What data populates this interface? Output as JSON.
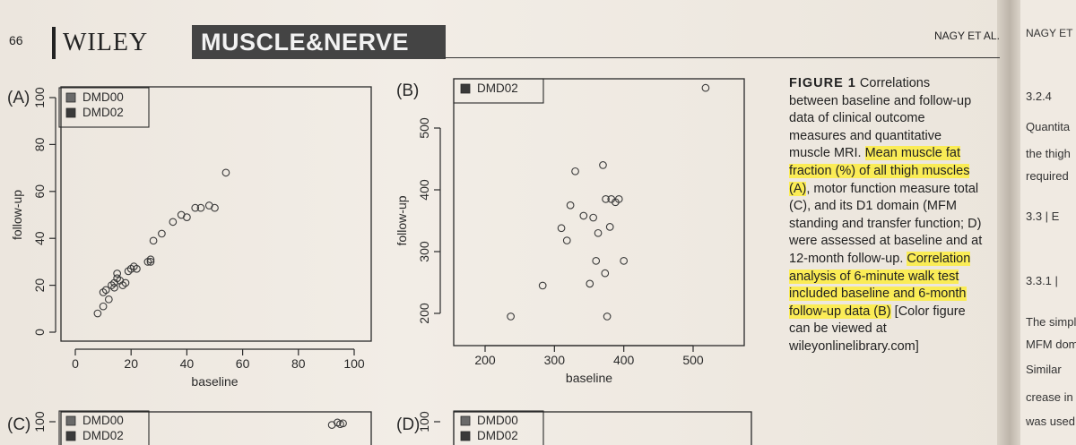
{
  "header": {
    "page_number": "66",
    "publisher": "WILEY",
    "journal": "MUSCLE&NERVE",
    "running_head": "NAGY ET AL."
  },
  "colors": {
    "highlight": "#ffee28",
    "journal_box": "#444444"
  },
  "caption": {
    "lines": [
      {
        "text": "FIGURE 1",
        "bold": true,
        "rest": " Correlations"
      },
      {
        "text": "between baseline and follow-up"
      },
      {
        "text": "data of clinical outcome"
      },
      {
        "text": "measures and quantitative"
      },
      {
        "pre": "muscle MRI. ",
        "hl": "Mean muscle fat"
      },
      {
        "hl": "fraction (%) of all thigh muscles"
      },
      {
        "hl": "(A)",
        "post": ", motor function measure total"
      },
      {
        "text": "(C), and its D1 domain (MFM"
      },
      {
        "text": "standing and transfer function; D)"
      },
      {
        "text": "were assessed at baseline and at"
      },
      {
        "pre": "12-month follow-up. ",
        "hl": "Correlation"
      },
      {
        "hl": "analysis of 6-minute walk test"
      },
      {
        "hl": "included baseline and 6-month"
      },
      {
        "hl": "follow-up data (B)",
        "post": " [Color figure"
      },
      {
        "text": "can be viewed at"
      },
      {
        "text": "wileyonlinelibrary.com]"
      }
    ]
  },
  "right_page": {
    "running_head": "NAGY ET",
    "snippets": [
      "3.2.4",
      "Quantita",
      "the thigh",
      "required",
      "3.3 | E",
      "3.3.1 |",
      "The simpl",
      "MFM dom",
      "Similar",
      "crease in S",
      "was used."
    ]
  },
  "chart_data": [
    {
      "panel": "(A)",
      "type": "scatter",
      "xlabel": "baseline",
      "ylabel": "follow-up",
      "xlim": [
        0,
        100
      ],
      "ylim": [
        0,
        100
      ],
      "xticks": [
        0,
        20,
        40,
        60,
        80,
        100
      ],
      "xtick_labels": [
        "0",
        "20",
        "40",
        "60",
        "80",
        "100"
      ],
      "yticks": [
        0,
        20,
        40,
        60,
        80,
        100
      ],
      "legend": [
        "DMD00",
        "DMD02"
      ],
      "legend_position": "top-left",
      "x": [
        8,
        10,
        10,
        11,
        12,
        13,
        14,
        14,
        15,
        15,
        16,
        17,
        18,
        19,
        20,
        21,
        22,
        26,
        27,
        27,
        28,
        31,
        35,
        38,
        40,
        43,
        45,
        48,
        50,
        54
      ],
      "y": [
        8,
        11,
        17,
        18,
        14,
        20,
        21,
        19,
        23,
        25,
        22,
        20,
        21,
        26,
        27,
        28,
        27,
        30,
        31,
        30,
        39,
        42,
        47,
        50,
        49,
        53,
        53,
        54,
        53,
        68
      ]
    },
    {
      "panel": "(B)",
      "type": "scatter",
      "xlabel": "baseline",
      "ylabel": "follow-up",
      "xlim": [
        190,
        530
      ],
      "ylim": [
        190,
        575
      ],
      "xticks": [
        200,
        300,
        400,
        500
      ],
      "xtick_labels": [
        "200",
        "300",
        "400",
        "500"
      ],
      "yticks": [
        200,
        300,
        400,
        500
      ],
      "legend": [
        "DMD02"
      ],
      "legend_position": "top-left",
      "x": [
        237,
        283,
        310,
        318,
        323,
        330,
        342,
        351,
        356,
        360,
        363,
        370,
        373,
        374,
        376,
        380,
        382,
        388,
        393,
        400,
        518
      ],
      "y": [
        195,
        245,
        338,
        318,
        375,
        430,
        358,
        248,
        355,
        285,
        330,
        440,
        265,
        385,
        195,
        340,
        385,
        380,
        385,
        285,
        565
      ]
    },
    {
      "panel": "(C)",
      "type": "scatter",
      "xlim": [
        0,
        100
      ],
      "ylim": [
        0,
        100
      ],
      "yticks": [
        100
      ],
      "legend": [
        "DMD00",
        "DMD02"
      ],
      "legend_position": "top-left",
      "x": [
        92,
        94,
        95,
        96
      ],
      "y": [
        96,
        99,
        97,
        98
      ]
    },
    {
      "panel": "(D)",
      "type": "scatter",
      "ylim": [
        0,
        100
      ],
      "yticks": [
        100
      ],
      "legend": [
        "DMD00",
        "DMD02"
      ],
      "legend_position": "top-left",
      "x": [],
      "y": []
    }
  ]
}
